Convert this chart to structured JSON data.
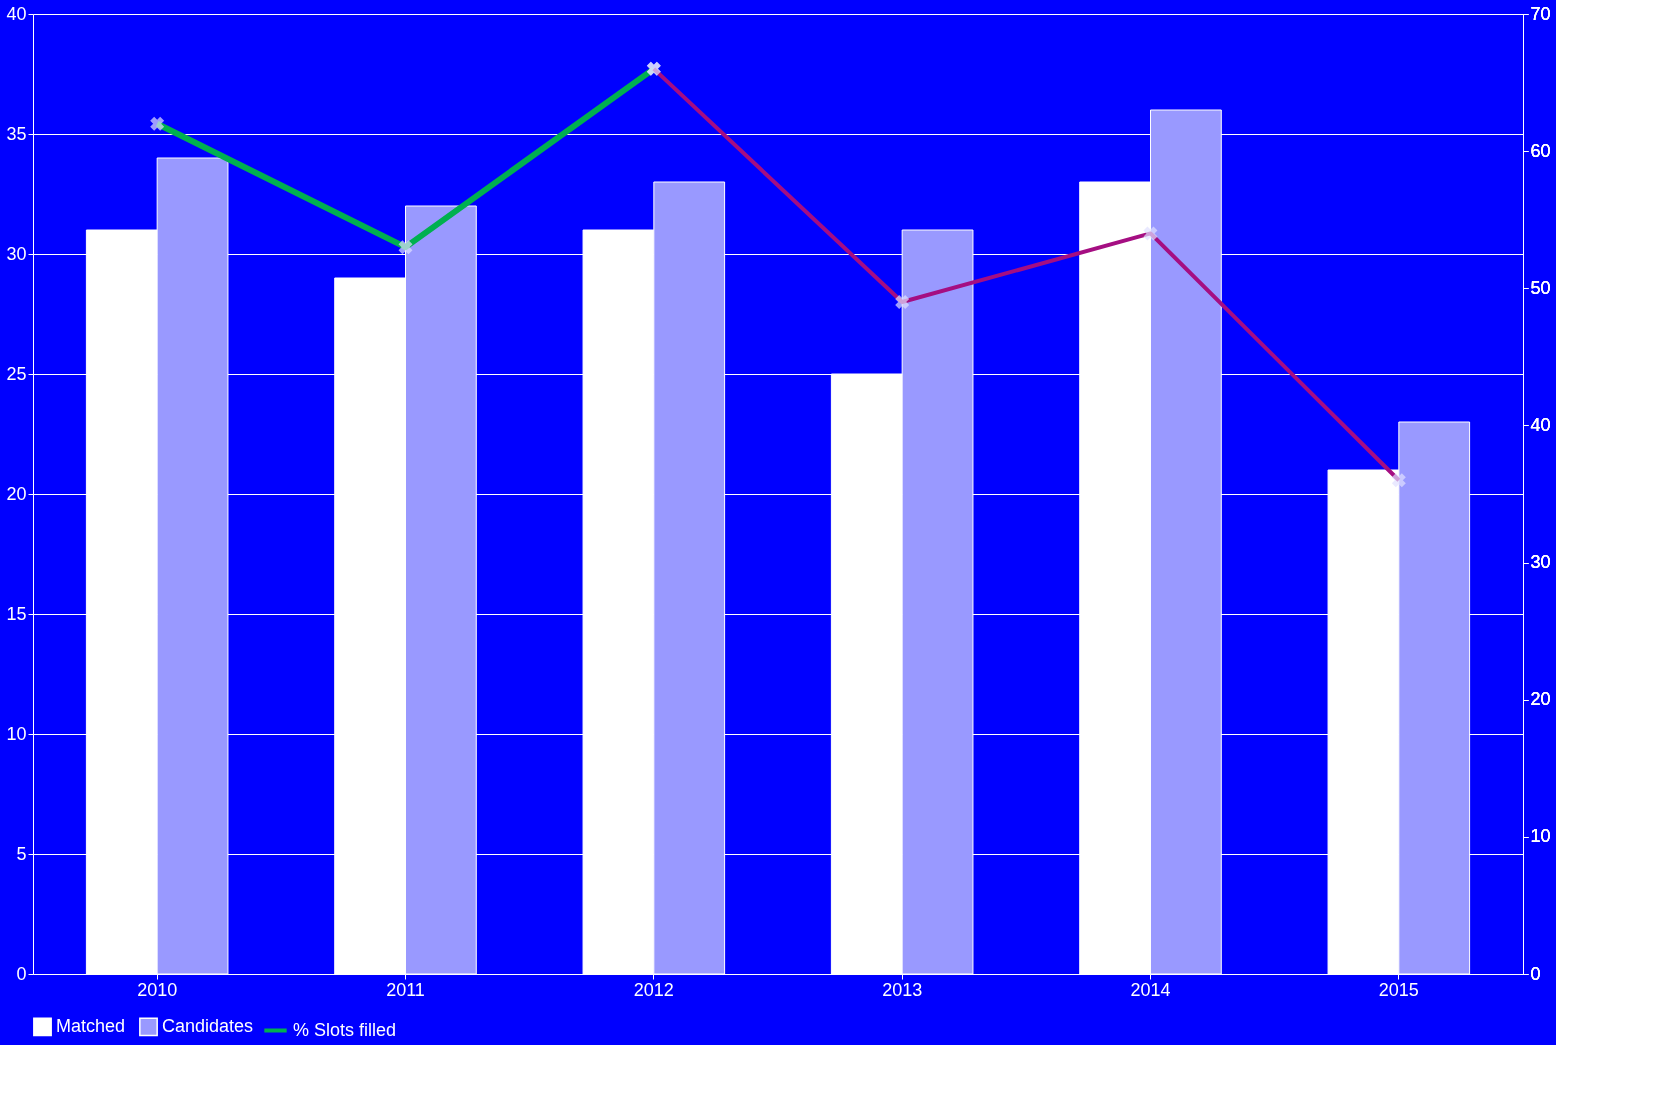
{
  "chart_data": {
    "type": "bar",
    "categories": [
      "2010",
      "2011",
      "2012",
      "2013",
      "2014",
      "2015"
    ],
    "series": [
      {
        "name": "Matched",
        "color": "#ffffff",
        "values": [
          31,
          29,
          31,
          25,
          33,
          21
        ]
      },
      {
        "name": "Candidates",
        "color": "#9999ff",
        "values": [
          34,
          32,
          33,
          31,
          36,
          23
        ]
      },
      {
        "name": "% Slots filled",
        "type": "line",
        "axis": "y2",
        "color": "#00b050",
        "values": [
          62,
          53,
          66,
          null,
          null,
          null
        ]
      },
      {
        "type": "line",
        "axis": "y2",
        "color": "#a50e82",
        "values": [
          null,
          null,
          66,
          49,
          54,
          36
        ]
      }
    ],
    "ylim": [
      0,
      40
    ],
    "yticks": [
      0,
      5,
      10,
      15,
      20,
      25,
      30,
      35,
      40
    ],
    "y2lim": [
      0,
      70
    ],
    "y2ticks": [
      0,
      10,
      20,
      30,
      40,
      50,
      60,
      70
    ],
    "grid": "y",
    "legend": "bottom",
    "marker": "cross",
    "line_style": "solid"
  }
}
